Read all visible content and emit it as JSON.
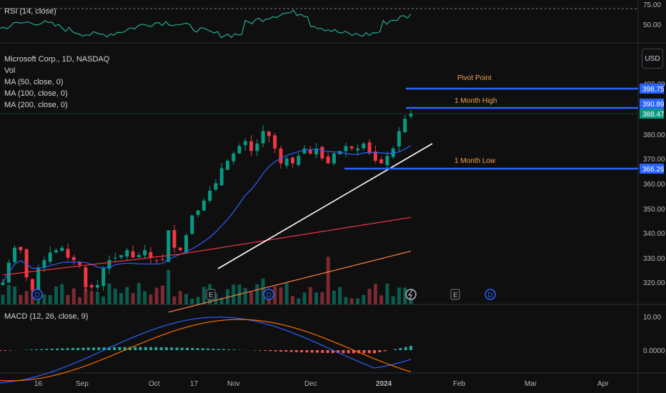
{
  "rsi": {
    "label": "RSI (14, close)",
    "ticks": [
      "75.00",
      "50.00"
    ]
  },
  "main": {
    "title": "Microsoft Corp., 1D, NASDAQ",
    "legend": [
      "Vol",
      "MA (50, close, 0)",
      "MA (100, close, 0)",
      "MA (200, close, 0)"
    ],
    "currency": "USD",
    "price_ticks": [
      "400.00",
      "380.00",
      "370.00",
      "360.00",
      "350.00",
      "340.00",
      "330.00",
      "320.00"
    ],
    "levels": [
      {
        "name": "Pivot Point",
        "value": "398.75",
        "color": "#2962ff"
      },
      {
        "name": "1 Month High",
        "value": "390.89",
        "color": "#2962ff"
      },
      {
        "name": "1 Month Low",
        "value": "366.26",
        "color": "#2962ff"
      }
    ],
    "last_price": "388.47",
    "events": [
      "D",
      "E",
      "D",
      "E",
      "D"
    ]
  },
  "macd": {
    "label": "MACD (12, 26, close, 9)",
    "ticks": [
      "10.00",
      "0.0000"
    ]
  },
  "xaxis": {
    "ticks": [
      "16",
      "Sep",
      "Oct",
      "17",
      "Nov",
      "Dec",
      "2024",
      "Feb",
      "Mar",
      "Apr"
    ]
  },
  "chart_data": {
    "type": "candlestick",
    "symbol": "Microsoft Corp.",
    "interval": "1D",
    "exchange": "NASDAQ",
    "ylim": [
      315,
      402
    ],
    "x": [
      "Aug 16",
      "Sep",
      "Oct",
      "Oct 17",
      "Nov",
      "Dec",
      "2024",
      "Feb",
      "Mar",
      "Apr"
    ],
    "close_approx": [
      320,
      328,
      334,
      333,
      322,
      317,
      326,
      329,
      332,
      333,
      334,
      330,
      329,
      327,
      318,
      318,
      319,
      326,
      329,
      330,
      331,
      333,
      330,
      331,
      333,
      330,
      329,
      329,
      341,
      334,
      333,
      339,
      347,
      349,
      353,
      357,
      360,
      366,
      369,
      372,
      375,
      377,
      373,
      376,
      381,
      379,
      374,
      368,
      370,
      368,
      371,
      374,
      372,
      374,
      370,
      368,
      372,
      373,
      375,
      374,
      374,
      376,
      372,
      369,
      368,
      371,
      374,
      381,
      386,
      388
    ],
    "moving_averages": [
      {
        "name": "MA (50, close, 0)",
        "color": "#2962ff"
      },
      {
        "name": "MA (100, close, 0)",
        "color": "#f23645"
      },
      {
        "name": "MA (200, close, 0)",
        "color": "#ff7f3f"
      }
    ],
    "levels": {
      "Pivot Point": 398.75,
      "1 Month High": 390.89,
      "1 Month Low": 366.26,
      "last": 388.47
    },
    "indicators": [
      "RSI (14, close)",
      "MACD (12, 26, close, 9)"
    ]
  }
}
